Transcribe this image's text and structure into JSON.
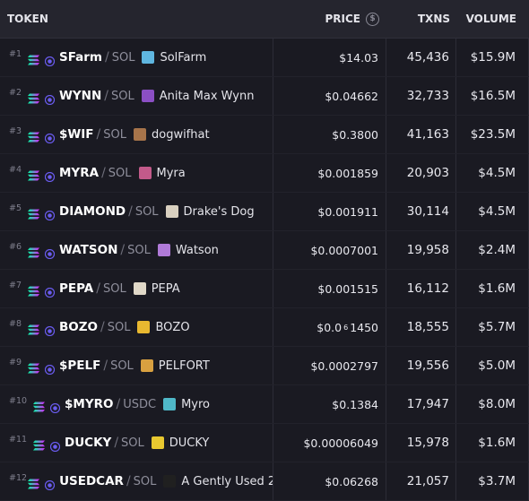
{
  "header": {
    "token": "TOKEN",
    "price": "PRICE",
    "price_icon": "dollar-circle-icon",
    "txns": "TXNS",
    "volume": "VOLUME"
  },
  "rows": [
    {
      "rank": "#1",
      "symbol": "SFarm",
      "quote": "SOL",
      "name": "SolFarm",
      "price": "$14.03",
      "txns": "45,436",
      "volume": "$15.9M",
      "avatar_color": "#5fb6e0"
    },
    {
      "rank": "#2",
      "symbol": "WYNN",
      "quote": "SOL",
      "name": "Anita Max Wynn",
      "price": "$0.04662",
      "txns": "32,733",
      "volume": "$16.5M",
      "avatar_color": "#8b4fc4"
    },
    {
      "rank": "#3",
      "symbol": "$WIF",
      "quote": "SOL",
      "name": "dogwifhat",
      "price": "$0.3800",
      "txns": "41,163",
      "volume": "$23.5M",
      "avatar_color": "#a7744a"
    },
    {
      "rank": "#4",
      "symbol": "MYRA",
      "quote": "SOL",
      "name": "Myra",
      "price": "$0.001859",
      "txns": "20,903",
      "volume": "$4.5M",
      "avatar_color": "#c25a8a"
    },
    {
      "rank": "#5",
      "symbol": "DIAMOND",
      "quote": "SOL",
      "name": "Drake's Dog",
      "price": "$0.001911",
      "txns": "30,114",
      "volume": "$4.5M",
      "avatar_color": "#d9d0c0"
    },
    {
      "rank": "#6",
      "symbol": "WATSON",
      "quote": "SOL",
      "name": "Watson",
      "price": "$0.0007001",
      "txns": "19,958",
      "volume": "$2.4M",
      "avatar_color": "#b07ad8"
    },
    {
      "rank": "#7",
      "symbol": "PEPA",
      "quote": "SOL",
      "name": "PEPA",
      "price": "$0.001515",
      "txns": "16,112",
      "volume": "$1.6M",
      "avatar_color": "#e0d8c8"
    },
    {
      "rank": "#8",
      "symbol": "BOZO",
      "quote": "SOL",
      "name": "BOZO",
      "price_prefix": "$0.0",
      "price_sub": "6",
      "price_suffix": "1450",
      "txns": "18,555",
      "volume": "$5.7M",
      "avatar_color": "#e8b830"
    },
    {
      "rank": "#9",
      "symbol": "$PELF",
      "quote": "SOL",
      "name": "PELFORT",
      "price": "$0.0002797",
      "txns": "19,556",
      "volume": "$5.0M",
      "avatar_color": "#d8a040"
    },
    {
      "rank": "#10",
      "symbol": "$MYRO",
      "quote": "USDC",
      "name": "Myro",
      "price": "$0.1384",
      "txns": "17,947",
      "volume": "$8.0M",
      "avatar_color": "#4fb8c8"
    },
    {
      "rank": "#11",
      "symbol": "DUCKY",
      "quote": "SOL",
      "name": "DUCKY",
      "price": "$0.00006049",
      "txns": "15,978",
      "volume": "$1.6M",
      "avatar_color": "#e8c830"
    },
    {
      "rank": "#12",
      "symbol": "USEDCAR",
      "quote": "SOL",
      "name": "A Gently Used 2",
      "price": "$0.06268",
      "txns": "21,057",
      "volume": "$3.7M",
      "avatar_color": "#202020"
    }
  ],
  "chain_icon": "solana-icon",
  "dex_icon": "raydium-icon"
}
